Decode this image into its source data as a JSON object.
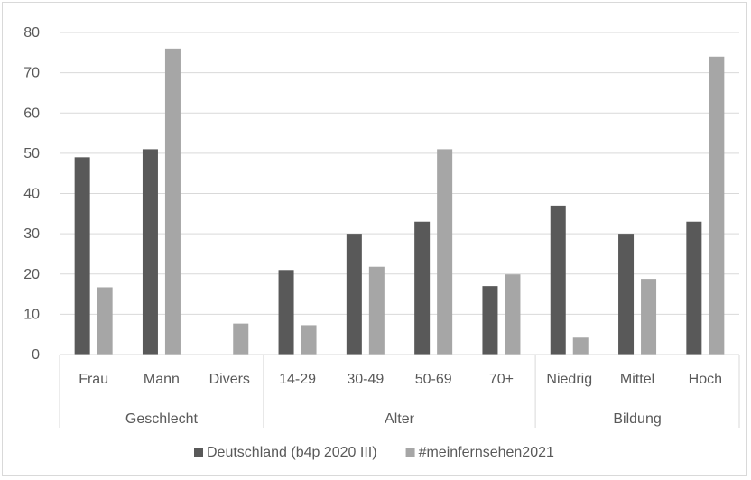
{
  "chart_data": {
    "type": "bar",
    "title": "",
    "xlabel": "",
    "ylabel": "",
    "ylim": [
      0,
      80
    ],
    "yticks": [
      0,
      10,
      20,
      30,
      40,
      50,
      60,
      70,
      80
    ],
    "grid": true,
    "legend_position": "bottom",
    "groups": [
      {
        "label": "Geschlecht",
        "categories": [
          "Frau",
          "Mann",
          "Divers"
        ]
      },
      {
        "label": "Alter",
        "categories": [
          "14-29",
          "30-49",
          "50-69",
          "70+"
        ]
      },
      {
        "label": "Bildung",
        "categories": [
          "Niedrig",
          "Mittel",
          "Hoch"
        ]
      }
    ],
    "categories": [
      "Frau",
      "Mann",
      "Divers",
      "14-29",
      "30-49",
      "50-69",
      "70+",
      "Niedrig",
      "Mittel",
      "Hoch"
    ],
    "series": [
      {
        "name": "Deutschland (b4p 2020 III)",
        "color": "#595959",
        "values": [
          49,
          51,
          null,
          21,
          30,
          33,
          17,
          37,
          30,
          33
        ]
      },
      {
        "name": "#meinfernsehen2021",
        "color": "#a6a6a6",
        "values": [
          16.7,
          76,
          7.7,
          7.3,
          21.8,
          51,
          19.9,
          4.2,
          18.8,
          74
        ]
      }
    ]
  }
}
